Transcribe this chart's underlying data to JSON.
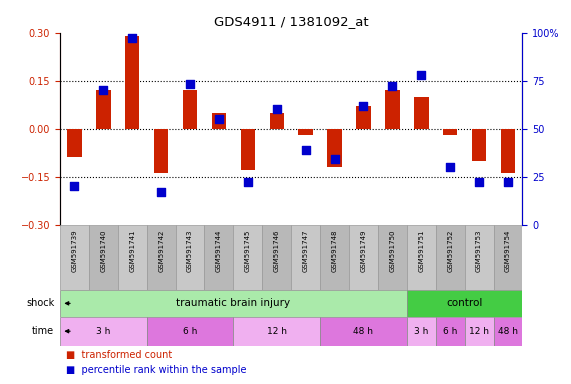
{
  "title": "GDS4911 / 1381092_at",
  "samples": [
    "GSM591739",
    "GSM591740",
    "GSM591741",
    "GSM591742",
    "GSM591743",
    "GSM591744",
    "GSM591745",
    "GSM591746",
    "GSM591747",
    "GSM591748",
    "GSM591749",
    "GSM591750",
    "GSM591751",
    "GSM591752",
    "GSM591753",
    "GSM591754"
  ],
  "red_values": [
    -0.09,
    0.12,
    0.29,
    -0.14,
    0.12,
    0.05,
    -0.13,
    0.05,
    -0.02,
    -0.12,
    0.07,
    0.12,
    0.1,
    -0.02,
    -0.1,
    -0.14
  ],
  "blue_values_pct": [
    20,
    70,
    97,
    17,
    73,
    55,
    22,
    60,
    39,
    34,
    62,
    72,
    78,
    30,
    22,
    22
  ],
  "ylim_left": [
    -0.3,
    0.3
  ],
  "ylim_right": [
    0,
    100
  ],
  "yticks_left": [
    -0.3,
    -0.15,
    0.0,
    0.15,
    0.3
  ],
  "yticks_right": [
    0,
    25,
    50,
    75,
    100
  ],
  "ytick_right_labels": [
    "0",
    "25",
    "50",
    "75",
    "100%"
  ],
  "hlines": [
    -0.15,
    0.0,
    0.15
  ],
  "shock_groups": [
    {
      "label": "traumatic brain injury",
      "start": 0,
      "end": 12,
      "color": "#aaeaaa"
    },
    {
      "label": "control",
      "start": 12,
      "end": 16,
      "color": "#44cc44"
    }
  ],
  "time_groups": [
    {
      "label": "3 h",
      "start": 0,
      "end": 3,
      "color": "#f0b0f0"
    },
    {
      "label": "6 h",
      "start": 3,
      "end": 6,
      "color": "#dd77dd"
    },
    {
      "label": "12 h",
      "start": 6,
      "end": 9,
      "color": "#f0b0f0"
    },
    {
      "label": "48 h",
      "start": 9,
      "end": 12,
      "color": "#dd77dd"
    },
    {
      "label": "3 h",
      "start": 12,
      "end": 13,
      "color": "#f0b0f0"
    },
    {
      "label": "6 h",
      "start": 13,
      "end": 14,
      "color": "#dd77dd"
    },
    {
      "label": "12 h",
      "start": 14,
      "end": 15,
      "color": "#f0b0f0"
    },
    {
      "label": "48 h",
      "start": 15,
      "end": 16,
      "color": "#dd77dd"
    }
  ],
  "legend_items": [
    {
      "label": "transformed count",
      "color": "#cc2200"
    },
    {
      "label": "percentile rank within the sample",
      "color": "#0000cc"
    }
  ],
  "bar_color": "#cc2200",
  "dot_color": "#0000cc",
  "bg_color": "#ffffff",
  "plot_bg": "#ffffff",
  "left_axis_color": "#cc2200",
  "right_axis_color": "#0000cc",
  "bar_width": 0.5,
  "dot_size": 28,
  "sample_box_colors": [
    "#c8c8c8",
    "#b8b8b8"
  ]
}
